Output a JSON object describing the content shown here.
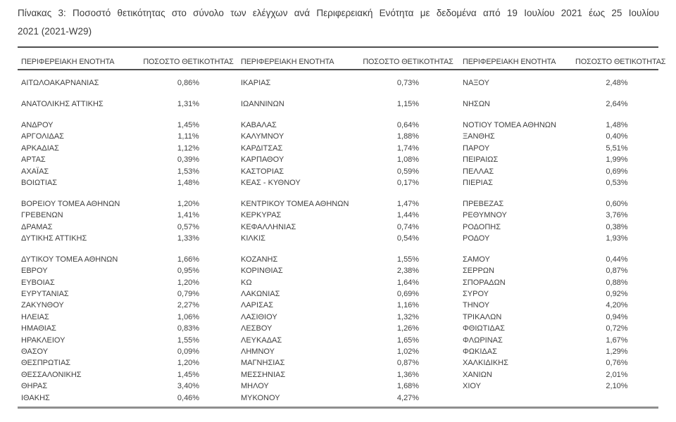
{
  "title": {
    "line1": "Πίνακας 3:  Ποσοστό θετικότητας στο σύνολο των ελέγχων ανά Περιφερειακή Ενότητα με δεδομένα από 19 Ιουλίου 2021 έως 25 Ιουλίου",
    "line2": "2021 (2021-W29)"
  },
  "colors": {
    "text": "#3f3f3f",
    "rule_dark": "#4f4f4f",
    "rule_light": "#8f8f8f",
    "background": "#ffffff"
  },
  "table": {
    "headers": {
      "region": "ΠΕΡΙΦΕΡΕΙΑΚΗ ΕΝΟΤΗΤΑ",
      "rate": "ΠΟΣΟΣΤΟ ΘΕΤΙΚΟΤΗΤΑΣ"
    },
    "spacer_after": [
      0,
      1,
      7,
      11
    ],
    "rows": [
      [
        "ΑΙΤΩΛΟΑΚΑΡΝΑΝΙΑΣ",
        "0,86%",
        "ΙΚΑΡΙΑΣ",
        "0,73%",
        "ΝΑΞΟΥ",
        "2,48%"
      ],
      [
        "ΑΝΑΤΟΛΙΚΗΣ ΑΤΤΙΚΗΣ",
        "1,31%",
        "ΙΩΑΝΝΙΝΩΝ",
        "1,15%",
        "ΝΗΣΩΝ",
        "2,64%"
      ],
      [
        "ΑΝΔΡΟΥ",
        "1,45%",
        "ΚΑΒΑΛΑΣ",
        "0,64%",
        "ΝΟΤΙΟΥ ΤΟΜΕΑ ΑΘΗΝΩΝ",
        "1,48%"
      ],
      [
        "ΑΡΓΟΛΙΔΑΣ",
        "1,11%",
        "ΚΑΛΥΜΝΟΥ",
        "1,88%",
        "ΞΑΝΘΗΣ",
        "0,40%"
      ],
      [
        "ΑΡΚΑΔΙΑΣ",
        "1,12%",
        "ΚΑΡΔΙΤΣΑΣ",
        "1,74%",
        "ΠΑΡΟΥ",
        "5,51%"
      ],
      [
        "ΑΡΤΑΣ",
        "0,39%",
        "ΚΑΡΠΑΘΟΥ",
        "1,08%",
        "ΠΕΙΡΑΙΩΣ",
        "1,99%"
      ],
      [
        "ΑΧΑΪΑΣ",
        "1,53%",
        "ΚΑΣΤΟΡΙΑΣ",
        "0,59%",
        "ΠΕΛΛΑΣ",
        "0,69%"
      ],
      [
        "ΒΟΙΩΤΙΑΣ",
        "1,48%",
        "ΚΕΑΣ - ΚΥΘΝΟΥ",
        "0,17%",
        "ΠΙΕΡΙΑΣ",
        "0,53%"
      ],
      [
        "ΒΟΡΕΙΟΥ ΤΟΜΕΑ ΑΘΗΝΩΝ",
        "1,20%",
        "ΚΕΝΤΡΙΚΟΥ ΤΟΜΕΑ ΑΘΗΝΩΝ",
        "1,47%",
        "ΠΡΕΒΕΖΑΣ",
        "0,60%"
      ],
      [
        "ΓΡΕΒΕΝΩΝ",
        "1,41%",
        "ΚΕΡΚΥΡΑΣ",
        "1,44%",
        "ΡΕΘΥΜΝΟΥ",
        "3,76%"
      ],
      [
        "ΔΡΑΜΑΣ",
        "0,57%",
        "ΚΕΦΑΛΛΗΝΙΑΣ",
        "0,74%",
        "ΡΟΔΟΠΗΣ",
        "0,38%"
      ],
      [
        "ΔΥΤΙΚΗΣ ΑΤΤΙΚΗΣ",
        "1,33%",
        "ΚΙΛΚΙΣ",
        "0,54%",
        "ΡΟΔΟΥ",
        "1,93%"
      ],
      [
        "ΔΥΤΙΚΟΥ ΤΟΜΕΑ ΑΘΗΝΩΝ",
        "1,66%",
        "ΚΟΖΑΝΗΣ",
        "1,55%",
        "ΣΑΜΟΥ",
        "0,44%"
      ],
      [
        "ΕΒΡΟΥ",
        "0,95%",
        "ΚΟΡΙΝΘΙΑΣ",
        "2,38%",
        "ΣΕΡΡΩΝ",
        "0,87%"
      ],
      [
        "ΕΥΒΟΙΑΣ",
        "1,20%",
        "ΚΩ",
        "1,64%",
        "ΣΠΟΡΑΔΩΝ",
        "0,88%"
      ],
      [
        "ΕΥΡΥΤΑΝΙΑΣ",
        "0,79%",
        "ΛΑΚΩΝΙΑΣ",
        "0,69%",
        "ΣΥΡΟΥ",
        "0,92%"
      ],
      [
        "ΖΑΚΥΝΘΟΥ",
        "2,27%",
        "ΛΑΡΙΣΑΣ",
        "1,16%",
        "ΤΗΝΟΥ",
        "4,20%"
      ],
      [
        "ΗΛΕΙΑΣ",
        "1,06%",
        "ΛΑΣΙΘΙΟΥ",
        "1,32%",
        "ΤΡΙΚΑΛΩΝ",
        "0,94%"
      ],
      [
        "ΗΜΑΘΙΑΣ",
        "0,83%",
        "ΛΕΣΒΟΥ",
        "1,26%",
        "ΦΘΙΩΤΙΔΑΣ",
        "0,72%"
      ],
      [
        "ΗΡΑΚΛΕΙΟΥ",
        "1,55%",
        "ΛΕΥΚΑΔΑΣ",
        "1,65%",
        "ΦΛΩΡΙΝΑΣ",
        "1,67%"
      ],
      [
        "ΘΑΣΟΥ",
        "0,09%",
        "ΛΗΜΝΟΥ",
        "1,02%",
        "ΦΩΚΙΔΑΣ",
        "1,29%"
      ],
      [
        "ΘΕΣΠΡΩΤΙΑΣ",
        "1,20%",
        "ΜΑΓΝΗΣΙΑΣ",
        "0,87%",
        "ΧΑΛΚΙΔΙΚΗΣ",
        "0,76%"
      ],
      [
        "ΘΕΣΣΑΛΟΝΙΚΗΣ",
        "1,45%",
        "ΜΕΣΣΗΝΙΑΣ",
        "1,36%",
        "ΧΑΝΙΩΝ",
        "2,01%"
      ],
      [
        "ΘΗΡΑΣ",
        "3,40%",
        "ΜΗΛΟΥ",
        "1,68%",
        "ΧΙΟΥ",
        "2,10%"
      ],
      [
        "ΙΘΑΚΗΣ",
        "0,46%",
        "ΜΥΚΟΝΟΥ",
        "4,27%",
        "",
        ""
      ]
    ]
  }
}
